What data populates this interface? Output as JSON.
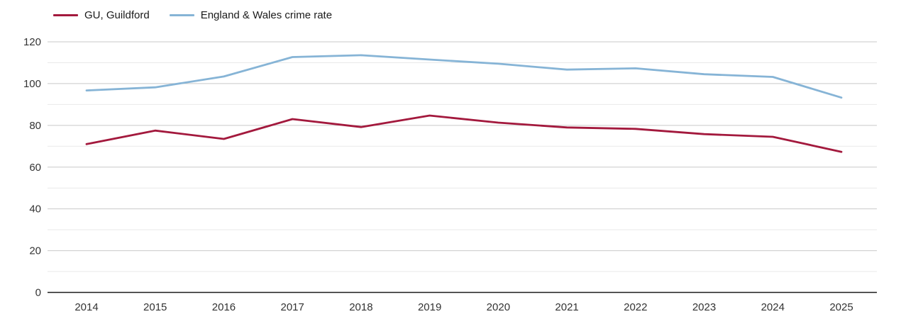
{
  "chart_data": {
    "type": "line",
    "title": "",
    "xlabel": "",
    "ylabel": "",
    "categories": [
      "2014",
      "2015",
      "2016",
      "2017",
      "2018",
      "2019",
      "2020",
      "2021",
      "2022",
      "2023",
      "2024",
      "2025"
    ],
    "series": [
      {
        "name": "GU, Guildford",
        "color": "#a3193d",
        "values": [
          71,
          77.5,
          73.5,
          83,
          79.2,
          84.7,
          81.3,
          79,
          78.3,
          75.8,
          74.5,
          67.3
        ]
      },
      {
        "name": "England & Wales crime rate",
        "color": "#86b4d6",
        "values": [
          96.7,
          98.2,
          103.4,
          112.7,
          113.6,
          111.5,
          109.5,
          106.7,
          107.3,
          104.5,
          103.2,
          93.3
        ]
      }
    ],
    "ylim": [
      0,
      120
    ],
    "y_major_ticks": [
      0,
      20,
      40,
      60,
      80,
      100,
      120
    ],
    "y_minor_ticks": [
      10,
      30,
      50,
      70,
      90,
      110
    ],
    "grid": true,
    "legend_position": "top-left"
  },
  "style": {
    "major_grid_color": "#c9c9c9",
    "minor_grid_color": "#e9e9e9",
    "axis_line_color": "#1a1a1a",
    "tick_label_color": "#333333",
    "background_color": "#ffffff"
  }
}
